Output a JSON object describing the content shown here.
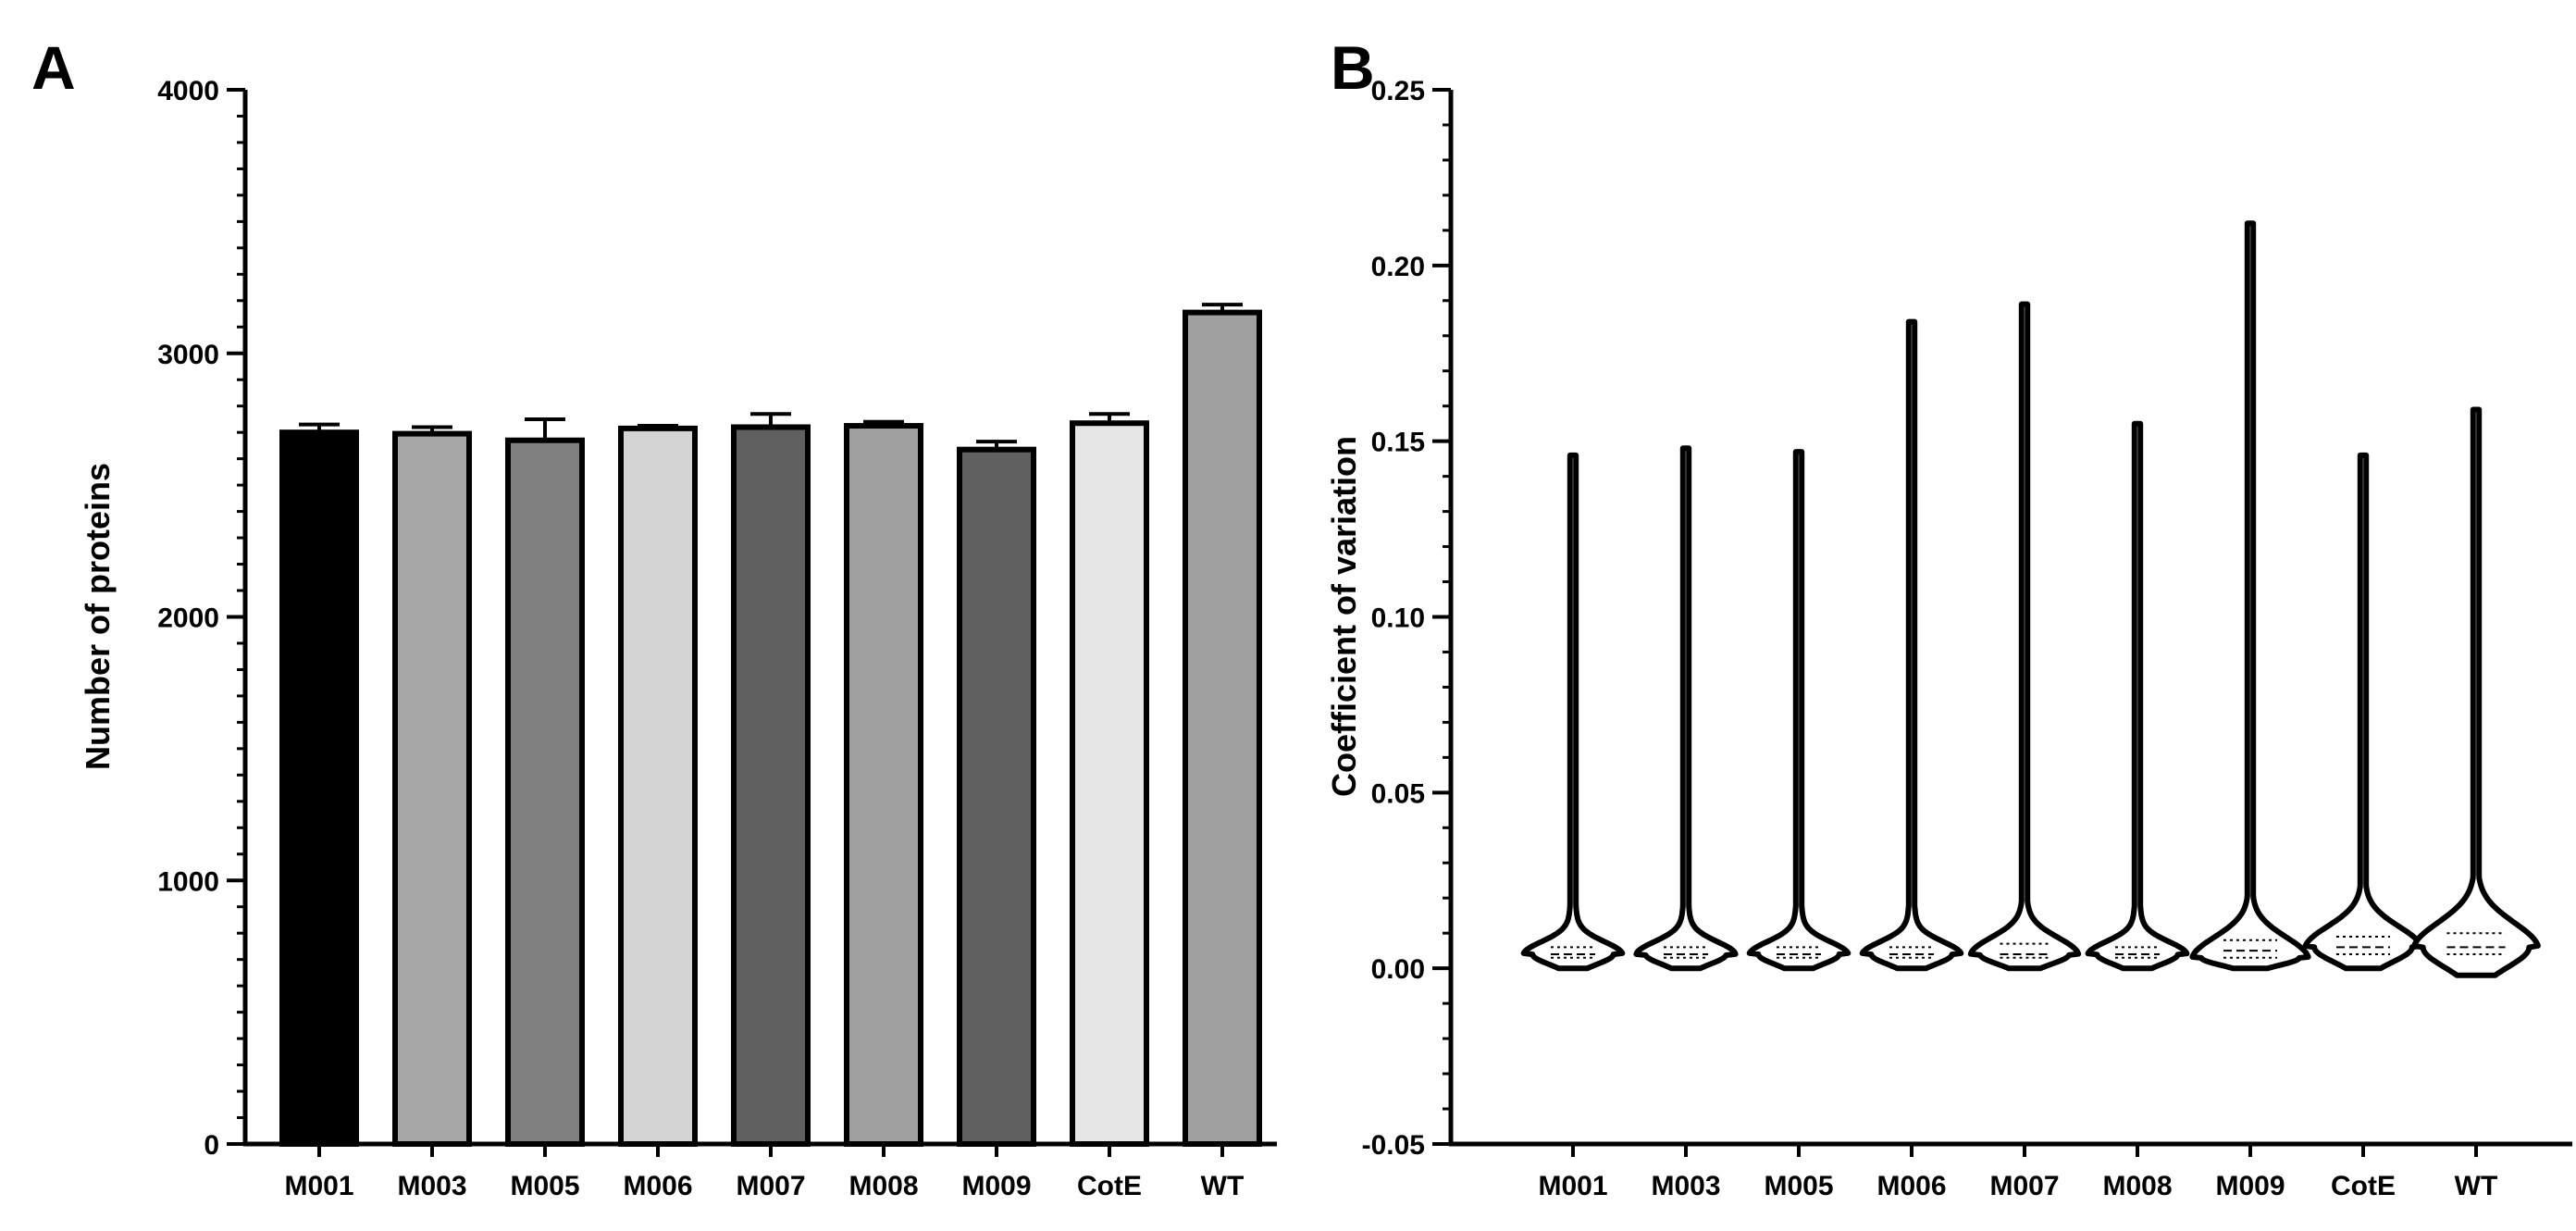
{
  "chart_data": [
    {
      "panel": "A",
      "type": "bar",
      "title": "",
      "xlabel": "",
      "ylabel": "Number of proteins",
      "ylim": [
        0,
        4000
      ],
      "yticks": [
        0,
        1000,
        2000,
        3000,
        4000
      ],
      "ytick_labels": [
        "0",
        "1000",
        "2000",
        "3000",
        "4000"
      ],
      "minor_tick_step": 100,
      "categories": [
        "M001",
        "M003",
        "M005",
        "M006",
        "M007",
        "M008",
        "M009",
        "CotE",
        "WT"
      ],
      "values": [
        2700,
        2695,
        2670,
        2715,
        2720,
        2725,
        2635,
        2735,
        3155
      ],
      "errors": [
        30,
        25,
        80,
        10,
        50,
        15,
        30,
        35,
        30
      ],
      "colors": [
        "#000000",
        "#a6a6a6",
        "#808080",
        "#d4d4d4",
        "#606060",
        "#a0a0a0",
        "#606060",
        "#e6e6e6",
        "#a0a0a0"
      ]
    },
    {
      "panel": "B",
      "type": "violin",
      "title": "",
      "xlabel": "",
      "ylabel": "Coefficient of variation",
      "ylim": [
        -0.05,
        0.25
      ],
      "yticks": [
        -0.05,
        0.0,
        0.05,
        0.1,
        0.15,
        0.2,
        0.25
      ],
      "ytick_labels": [
        "-0.05",
        "0.00",
        "0.05",
        "0.10",
        "0.15",
        "0.20",
        "0.25"
      ],
      "minor_tick_step": 0.01,
      "categories": [
        "M001",
        "M003",
        "M005",
        "M006",
        "M007",
        "M008",
        "M009",
        "CotE",
        "WT"
      ],
      "min": [
        0.0,
        0.0,
        0.0,
        0.0,
        0.0,
        0.0,
        0.0,
        0.0,
        -0.002
      ],
      "max": [
        0.146,
        0.148,
        0.147,
        0.184,
        0.189,
        0.155,
        0.212,
        0.146,
        0.159
      ],
      "q1": [
        0.003,
        0.003,
        0.003,
        0.003,
        0.003,
        0.003,
        0.003,
        0.004,
        0.004
      ],
      "median": [
        0.004,
        0.004,
        0.004,
        0.004,
        0.004,
        0.004,
        0.005,
        0.006,
        0.006
      ],
      "q3": [
        0.006,
        0.006,
        0.006,
        0.006,
        0.007,
        0.006,
        0.008,
        0.009,
        0.01
      ],
      "mode": [
        0.004,
        0.004,
        0.004,
        0.004,
        0.004,
        0.004,
        0.003,
        0.006,
        0.006
      ]
    }
  ],
  "panel_labels": [
    "A",
    "B"
  ]
}
